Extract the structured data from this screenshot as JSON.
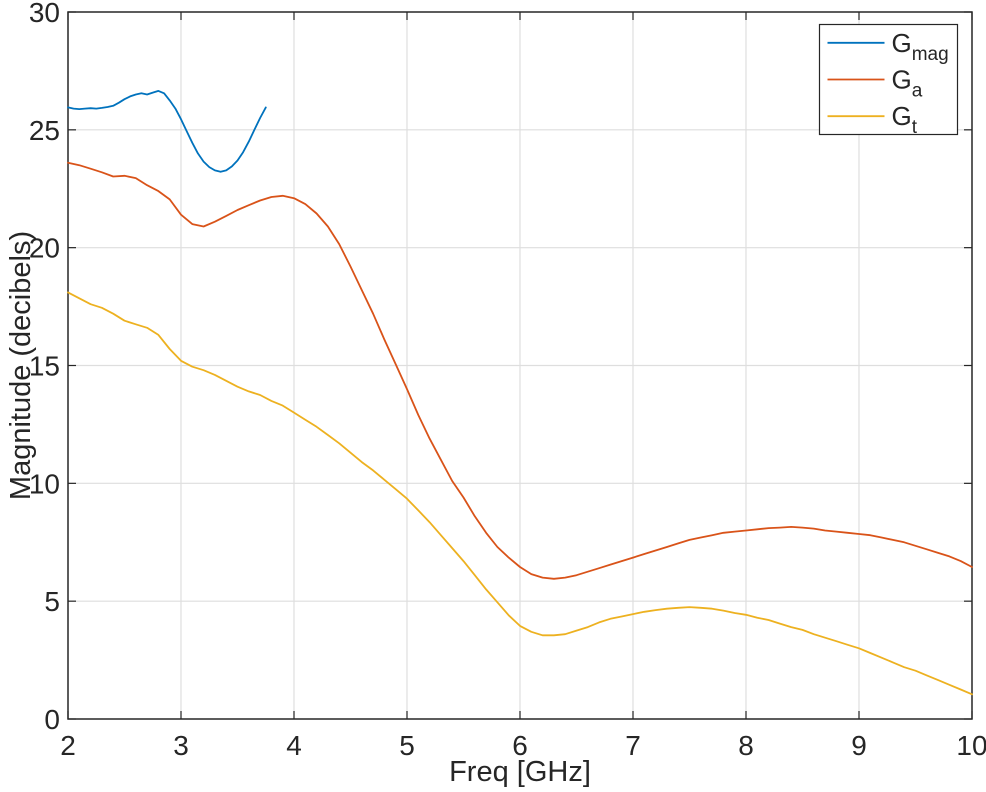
{
  "chart_data": {
    "type": "line",
    "title": "",
    "xlabel": "Freq [GHz]",
    "ylabel": "Magnitude (decibels)",
    "xlim": [
      2,
      10
    ],
    "ylim": [
      0,
      30
    ],
    "x_ticks": [
      2,
      3,
      4,
      5,
      6,
      7,
      8,
      9,
      10
    ],
    "x_tick_labels": [
      "2",
      "3",
      "4",
      "5",
      "6",
      "7",
      "8",
      "9",
      "10"
    ],
    "y_ticks": [
      0,
      5,
      10,
      15,
      20,
      25,
      30
    ],
    "y_tick_labels": [
      "0",
      "5",
      "10",
      "15",
      "20",
      "25",
      "30"
    ],
    "grid": true,
    "colors": {
      "axis": "#262626",
      "grid": "#dedede",
      "background": "#ffffff"
    },
    "legend": {
      "position": "top-right",
      "border": true,
      "entries": [
        {
          "base": "G",
          "sub": "mag"
        },
        {
          "base": "G",
          "sub": "a"
        },
        {
          "base": "G",
          "sub": "t"
        }
      ]
    },
    "series": [
      {
        "name": "G_mag",
        "color": "#0072BD",
        "x": [
          2,
          2.05,
          2.1,
          2.15,
          2.2,
          2.25,
          2.3,
          2.35,
          2.4,
          2.45,
          2.5,
          2.55,
          2.6,
          2.65,
          2.7,
          2.75,
          2.8,
          2.85,
          2.9,
          2.95,
          3,
          3.05,
          3.1,
          3.15,
          3.2,
          3.25,
          3.3,
          3.35,
          3.4,
          3.45,
          3.5,
          3.55,
          3.6,
          3.65,
          3.7,
          3.75
        ],
        "y": [
          25.95,
          25.9,
          25.88,
          25.9,
          25.92,
          25.9,
          25.93,
          25.97,
          26.02,
          26.15,
          26.3,
          26.42,
          26.5,
          26.55,
          26.5,
          26.58,
          26.65,
          26.55,
          26.25,
          25.9,
          25.45,
          24.95,
          24.45,
          24,
          23.65,
          23.42,
          23.28,
          23.22,
          23.28,
          23.45,
          23.7,
          24.05,
          24.5,
          25,
          25.5,
          25.95
        ]
      },
      {
        "name": "G_a",
        "color": "#D95319",
        "x": [
          2,
          2.1,
          2.2,
          2.3,
          2.4,
          2.5,
          2.6,
          2.7,
          2.8,
          2.9,
          3,
          3.1,
          3.2,
          3.3,
          3.4,
          3.5,
          3.6,
          3.7,
          3.8,
          3.9,
          4,
          4.1,
          4.2,
          4.3,
          4.4,
          4.5,
          4.6,
          4.7,
          4.8,
          4.9,
          5,
          5.1,
          5.2,
          5.3,
          5.4,
          5.5,
          5.6,
          5.7,
          5.8,
          5.9,
          6,
          6.1,
          6.2,
          6.3,
          6.4,
          6.5,
          6.6,
          6.7,
          6.8,
          6.9,
          7,
          7.1,
          7.2,
          7.3,
          7.4,
          7.5,
          7.6,
          7.7,
          7.8,
          7.9,
          8,
          8.1,
          8.2,
          8.3,
          8.4,
          8.5,
          8.6,
          8.7,
          8.8,
          8.9,
          9,
          9.1,
          9.2,
          9.3,
          9.4,
          9.5,
          9.6,
          9.7,
          9.8,
          9.9,
          10
        ],
        "y": [
          23.6,
          23.5,
          23.35,
          23.2,
          23.02,
          23.05,
          22.95,
          22.65,
          22.4,
          22.05,
          21.4,
          21,
          20.9,
          21.1,
          21.35,
          21.6,
          21.8,
          22,
          22.15,
          22.2,
          22.1,
          21.85,
          21.45,
          20.9,
          20.15,
          19.2,
          18.2,
          17.2,
          16.1,
          15.05,
          14,
          12.9,
          11.9,
          11,
          10.1,
          9.4,
          8.6,
          7.9,
          7.3,
          6.85,
          6.45,
          6.15,
          6,
          5.95,
          6,
          6.1,
          6.25,
          6.4,
          6.55,
          6.7,
          6.85,
          7,
          7.15,
          7.3,
          7.45,
          7.6,
          7.7,
          7.8,
          7.9,
          7.95,
          8,
          8.05,
          8.1,
          8.12,
          8.15,
          8.12,
          8.08,
          8,
          7.95,
          7.9,
          7.85,
          7.8,
          7.7,
          7.6,
          7.5,
          7.35,
          7.2,
          7.05,
          6.9,
          6.7,
          6.45
        ]
      },
      {
        "name": "G_t",
        "color": "#EDB120",
        "x": [
          2,
          2.1,
          2.2,
          2.3,
          2.4,
          2.5,
          2.6,
          2.7,
          2.8,
          2.9,
          3,
          3.1,
          3.2,
          3.3,
          3.4,
          3.5,
          3.6,
          3.7,
          3.8,
          3.9,
          4,
          4.1,
          4.2,
          4.3,
          4.4,
          4.5,
          4.6,
          4.7,
          4.8,
          4.9,
          5,
          5.1,
          5.2,
          5.3,
          5.4,
          5.5,
          5.6,
          5.7,
          5.8,
          5.9,
          6,
          6.1,
          6.2,
          6.3,
          6.4,
          6.5,
          6.6,
          6.7,
          6.8,
          6.9,
          7,
          7.1,
          7.2,
          7.3,
          7.4,
          7.5,
          7.6,
          7.7,
          7.8,
          7.9,
          8,
          8.1,
          8.2,
          8.3,
          8.4,
          8.5,
          8.6,
          8.7,
          8.8,
          8.9,
          9,
          9.1,
          9.2,
          9.3,
          9.4,
          9.5,
          9.6,
          9.7,
          9.8,
          9.9,
          10
        ],
        "y": [
          18.1,
          17.85,
          17.6,
          17.45,
          17.2,
          16.9,
          16.75,
          16.6,
          16.3,
          15.7,
          15.2,
          14.95,
          14.8,
          14.6,
          14.35,
          14.1,
          13.9,
          13.75,
          13.5,
          13.3,
          13,
          12.7,
          12.4,
          12.05,
          11.7,
          11.3,
          10.9,
          10.55,
          10.15,
          9.75,
          9.35,
          8.85,
          8.35,
          7.8,
          7.25,
          6.7,
          6.1,
          5.5,
          4.95,
          4.4,
          3.95,
          3.7,
          3.55,
          3.55,
          3.6,
          3.75,
          3.9,
          4.1,
          4.25,
          4.35,
          4.45,
          4.55,
          4.62,
          4.68,
          4.72,
          4.75,
          4.72,
          4.68,
          4.6,
          4.5,
          4.42,
          4.3,
          4.2,
          4.05,
          3.9,
          3.78,
          3.6,
          3.45,
          3.3,
          3.15,
          3,
          2.8,
          2.6,
          2.4,
          2.2,
          2.05,
          1.85,
          1.65,
          1.45,
          1.25,
          1.05
        ]
      }
    ]
  }
}
